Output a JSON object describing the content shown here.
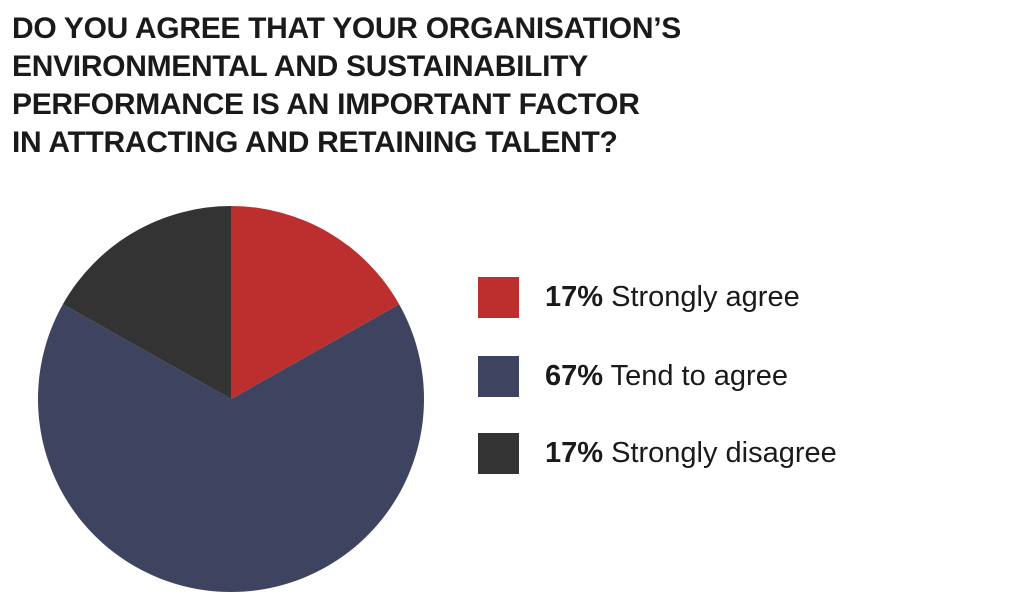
{
  "chart_data": {
    "type": "pie",
    "title_lines": [
      "DO YOU AGREE THAT YOUR ORGANISATION’S",
      "ENVIRONMENTAL AND SUSTAINABILITY",
      "PERFORMANCE IS AN IMPORTANT FACTOR",
      "IN ATTRACTING AND RETAINING TALENT?"
    ],
    "slices": [
      {
        "label": "Strongly agree",
        "value": 17,
        "value_label": "17%",
        "color": "#bd2f2e"
      },
      {
        "label": "Tend to agree",
        "value": 67,
        "value_label": "67%",
        "color": "#3e4460"
      },
      {
        "label": "Strongly disagree",
        "value": 17,
        "value_label": "17%",
        "color": "#333333"
      }
    ],
    "legend_position": "right"
  }
}
